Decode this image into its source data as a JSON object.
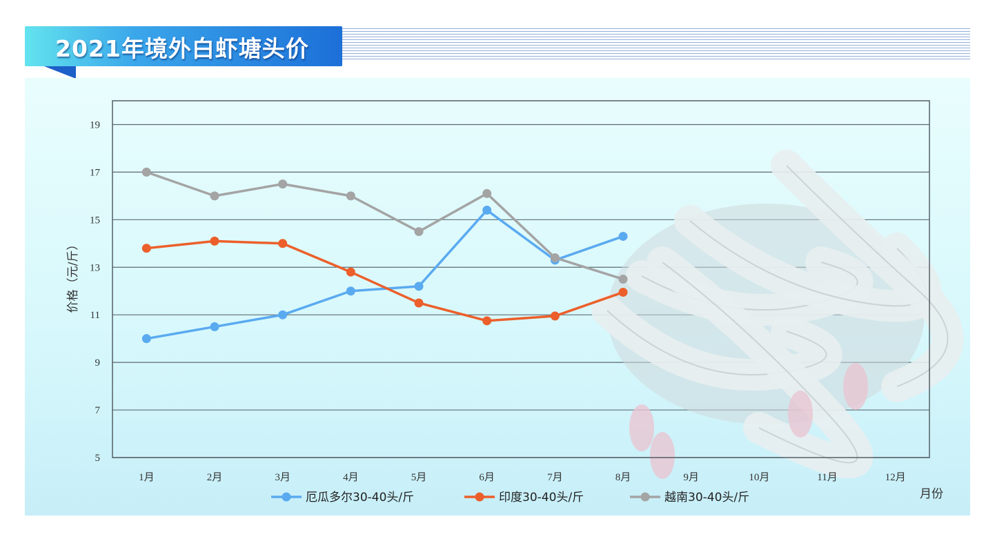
{
  "title": "2021年境外白虾塘头价",
  "chart_data": {
    "type": "line",
    "categories": [
      "1月",
      "2月",
      "3月",
      "4月",
      "5月",
      "6月",
      "7月",
      "8月",
      "9月",
      "10月",
      "11月",
      "12月"
    ],
    "xlabel": "月份",
    "ylabel": "价格（元/斤）",
    "ylim": [
      5,
      20
    ],
    "yticks": [
      5,
      7,
      9,
      11,
      13,
      15,
      17,
      19
    ],
    "grid": true,
    "legend_position": "bottom",
    "series": [
      {
        "name": "厄瓜多尔30-40头/斤",
        "color": "#5aaaf0",
        "values": [
          10.0,
          10.5,
          11.0,
          12.0,
          12.2,
          15.4,
          13.3,
          14.3,
          null,
          null,
          null,
          null
        ]
      },
      {
        "name": "印度30-40头/斤",
        "color": "#ec5f2a",
        "values": [
          13.8,
          14.1,
          14.0,
          12.8,
          11.5,
          10.75,
          10.95,
          11.95,
          null,
          null,
          null,
          null
        ]
      },
      {
        "name": "越南30-40头/斤",
        "color": "#a4a4a4",
        "values": [
          17.0,
          16.0,
          16.5,
          16.0,
          14.5,
          16.1,
          13.4,
          12.5,
          null,
          null,
          null,
          null
        ]
      }
    ]
  }
}
